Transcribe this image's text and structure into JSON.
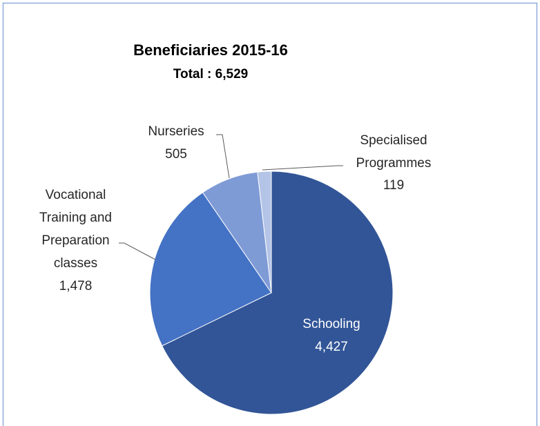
{
  "chart_data": {
    "type": "pie",
    "title": "Beneficiaries 2015-16",
    "subtitle": "Total : 6,529",
    "categories": [
      "Schooling",
      "Vocational Training and Preparation classes",
      "Nurseries",
      "Specialised Programmes"
    ],
    "values": [
      4427,
      1478,
      505,
      119
    ],
    "value_labels": [
      "4,427",
      "1,478",
      "505",
      "119"
    ],
    "colors": [
      "#325597",
      "#4472c4",
      "#7f9bd6",
      "#b4c4e7"
    ]
  }
}
